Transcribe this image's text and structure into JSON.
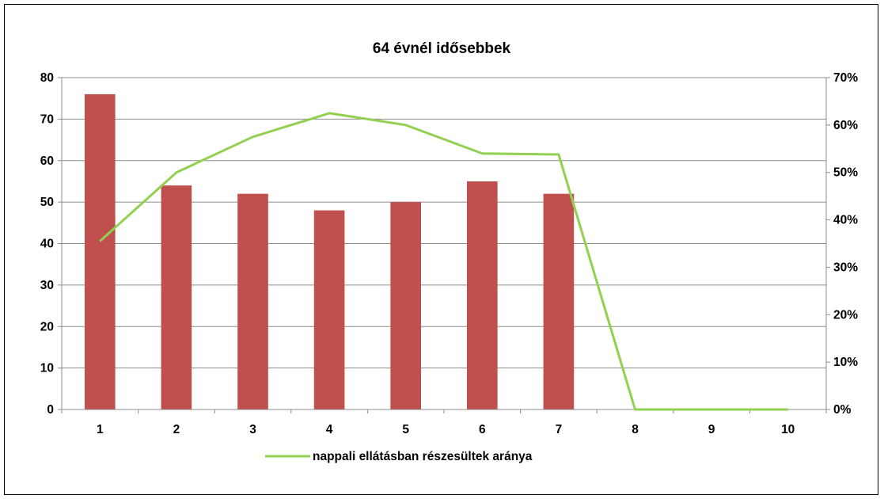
{
  "chart_data": {
    "type": "bar",
    "title": "64 évnél idősebbek",
    "categories": [
      "1",
      "2",
      "3",
      "4",
      "5",
      "6",
      "7",
      "8",
      "9",
      "10"
    ],
    "series": [
      {
        "type": "bar",
        "axis": "left",
        "color": "#C0504D",
        "values": [
          76,
          54,
          52,
          48,
          50,
          55,
          52,
          null,
          null,
          null
        ]
      },
      {
        "type": "line",
        "axis": "right",
        "name": "nappali ellátásban részesültek aránya",
        "color": "#92D050",
        "values": [
          0.355,
          0.5,
          0.575,
          0.625,
          0.6,
          0.54,
          0.538,
          0.0,
          0.0,
          0.0
        ]
      }
    ],
    "y_left": {
      "min": 0,
      "max": 80,
      "ticks": [
        "0",
        "10",
        "20",
        "30",
        "40",
        "50",
        "60",
        "70",
        "80"
      ]
    },
    "y_right": {
      "min": 0,
      "max": 0.7,
      "ticks": [
        "0%",
        "10%",
        "20%",
        "30%",
        "40%",
        "50%",
        "60%",
        "70%"
      ]
    },
    "grid": true,
    "legend_position": "bottom"
  }
}
